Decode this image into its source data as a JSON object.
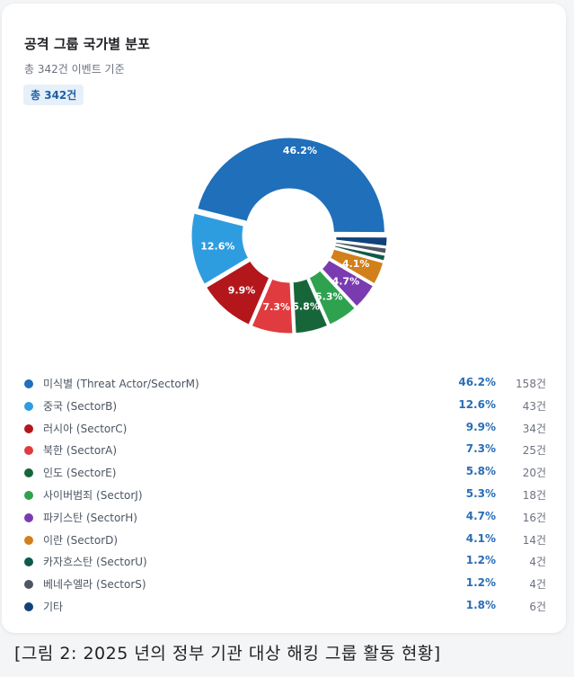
{
  "title": "공격 그룹 국가별 분포",
  "subtitle": "총 342건 이벤트 기준",
  "badge": "총 342건",
  "caption": "[그림 2: 2025 년의 정부 기관 대상 해킹 그룹 활동 현황]",
  "chart_data": {
    "type": "pie",
    "title": "공격 그룹 국가별 분포",
    "total": 342,
    "slices": [
      {
        "label": "미식별 (Threat Actor/SectorM)",
        "pct": 46.2,
        "pct_label": "46.2%",
        "count": "158건",
        "color": "#1f6fba"
      },
      {
        "label": "중국 (SectorB)",
        "pct": 12.6,
        "pct_label": "12.6%",
        "count": "43건",
        "color": "#2e9de0"
      },
      {
        "label": "러시아 (SectorC)",
        "pct": 9.9,
        "pct_label": "9.9%",
        "count": "34건",
        "color": "#b3171c"
      },
      {
        "label": "북한 (SectorA)",
        "pct": 7.3,
        "pct_label": "7.3%",
        "count": "25건",
        "color": "#e03b3f"
      },
      {
        "label": "인도 (SectorE)",
        "pct": 5.8,
        "pct_label": "5.8%",
        "count": "20건",
        "color": "#16663a"
      },
      {
        "label": "사이버범죄 (SectorJ)",
        "pct": 5.3,
        "pct_label": "5.3%",
        "count": "18건",
        "color": "#2ea24f"
      },
      {
        "label": "파키스탄 (SectorH)",
        "pct": 4.7,
        "pct_label": "4.7%",
        "count": "16건",
        "color": "#7b3bb0"
      },
      {
        "label": "이란 (SectorD)",
        "pct": 4.1,
        "pct_label": "4.1%",
        "count": "14건",
        "color": "#d2801c"
      },
      {
        "label": "카자흐스탄 (SectorU)",
        "pct": 1.2,
        "pct_label": "1.2%",
        "count": "4건",
        "color": "#0f5a4a"
      },
      {
        "label": "베네수엘라 (SectorS)",
        "pct": 1.2,
        "pct_label": "1.2%",
        "count": "4건",
        "color": "#4f5563"
      },
      {
        "label": "기타",
        "pct": 1.8,
        "pct_label": "1.8%",
        "count": "6건",
        "color": "#12427a"
      }
    ]
  }
}
